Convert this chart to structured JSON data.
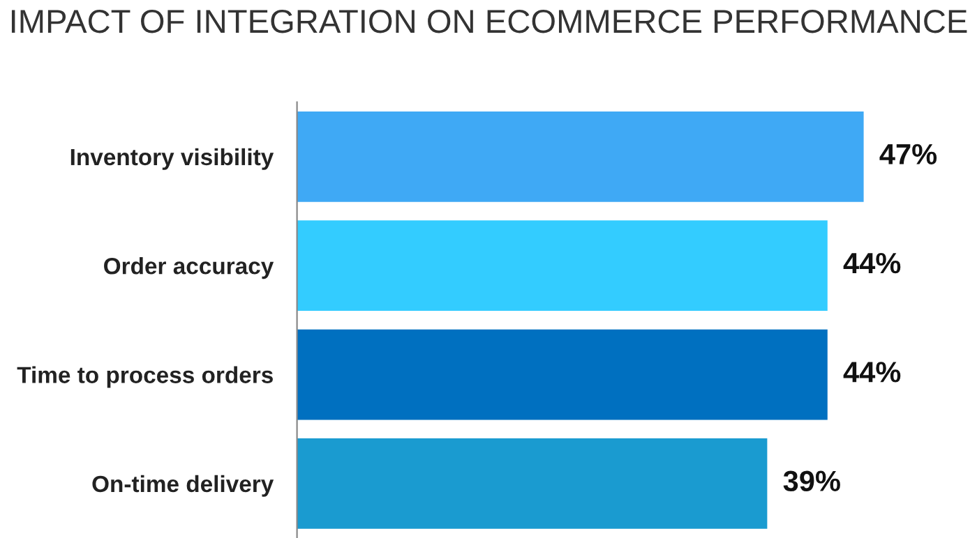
{
  "chart_data": {
    "type": "bar",
    "orientation": "horizontal",
    "title": "IMPACT OF INTEGRATION ON ECOMMERCE PERFORMANCE",
    "categories": [
      "Inventory visibility",
      "Order accuracy",
      "Time to process orders",
      "On-time delivery"
    ],
    "values": [
      47,
      44,
      44,
      39
    ],
    "colors": [
      "#3fa9f5",
      "#33ccff",
      "#0070c0",
      "#1a9bd0"
    ],
    "value_labels": [
      "47%",
      "44%",
      "44%",
      "39%"
    ],
    "grid": false,
    "legend": false
  }
}
